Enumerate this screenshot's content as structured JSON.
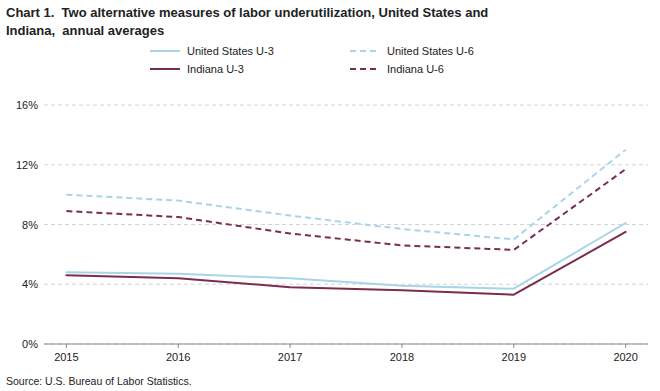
{
  "chart_data": {
    "type": "line",
    "title": "Chart 1.  Two alternative measures of labor underutilization, United States and\nIndiana,  annual averages",
    "annotations": [
      "Source: U.S. Bureau of Labor Statistics."
    ],
    "x": [
      2015,
      2016,
      2017,
      2018,
      2019,
      2020
    ],
    "xlim": [
      2014.8,
      2020.2
    ],
    "xticks": [
      2015,
      2016,
      2017,
      2018,
      2019,
      2020
    ],
    "ylim": [
      0,
      16
    ],
    "yticks": [
      {
        "value": 0,
        "label": "0%"
      },
      {
        "value": 4,
        "label": "4%"
      },
      {
        "value": 8,
        "label": "8%"
      },
      {
        "value": 12,
        "label": "12%"
      },
      {
        "value": 16,
        "label": "16%"
      }
    ],
    "grid": true,
    "legend": "top",
    "series": [
      {
        "name": "United States U-3",
        "color": "#a8d4e8",
        "line_style": "solid",
        "values": [
          4.8,
          4.7,
          4.4,
          3.9,
          3.7,
          8.1
        ]
      },
      {
        "name": "United States U-6",
        "color": "#a8d4e8",
        "line_style": "dashed",
        "values": [
          10.0,
          9.6,
          8.6,
          7.7,
          7.0,
          13.0
        ]
      },
      {
        "name": "Indiana U-3",
        "color": "#7B2D4E",
        "line_style": "solid",
        "values": [
          4.6,
          4.4,
          3.8,
          3.6,
          3.3,
          7.5
        ]
      },
      {
        "name": "Indiana U-6",
        "color": "#7B2D4E",
        "line_style": "dashed",
        "values": [
          8.9,
          8.5,
          7.4,
          6.6,
          6.3,
          11.7
        ]
      }
    ]
  }
}
